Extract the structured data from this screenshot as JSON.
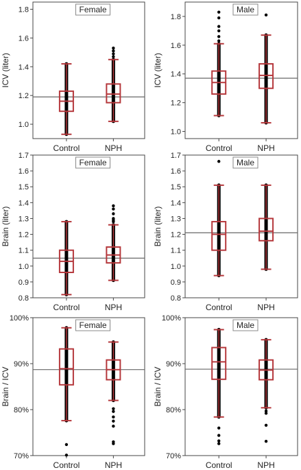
{
  "figure": {
    "panels": [
      "icv-female",
      "icv-male",
      "brain-female",
      "brain-male",
      "ratio-female",
      "ratio-male"
    ]
  },
  "chart_data": [
    {
      "id": "icv-female",
      "type": "box",
      "title": "Female",
      "ylabel": "ICV (liter)",
      "ylim": [
        0.9,
        1.85
      ],
      "yticks": [
        1.0,
        1.2,
        1.4,
        1.6,
        1.8
      ],
      "ytick_labels": [
        "1.0",
        "1.2",
        "1.4",
        "1.6",
        "1.8"
      ],
      "categories": [
        "Control",
        "NPH"
      ],
      "reference_line": 1.19,
      "boxes": [
        {
          "category": "Control",
          "whisker_low": 0.93,
          "q1": 1.09,
          "median": 1.16,
          "q3": 1.23,
          "whisker_high": 1.42,
          "outliers": []
        },
        {
          "category": "NPH",
          "whisker_low": 1.02,
          "q1": 1.15,
          "median": 1.21,
          "q3": 1.28,
          "whisker_high": 1.45,
          "outliers": [
            1.47,
            1.49,
            1.51,
            1.53
          ]
        }
      ],
      "colors": {
        "box": "#b5383c",
        "points": "#000000",
        "reference_line": "#666666"
      }
    },
    {
      "id": "icv-male",
      "type": "box",
      "title": "Male",
      "ylabel": "ICV (liter)",
      "ylim": [
        0.95,
        1.9
      ],
      "yticks": [
        1.0,
        1.2,
        1.4,
        1.6,
        1.8
      ],
      "ytick_labels": [
        "1.0",
        "1.2",
        "1.4",
        "1.6",
        "1.8"
      ],
      "categories": [
        "Control",
        "NPH"
      ],
      "reference_line": 1.37,
      "boxes": [
        {
          "category": "Control",
          "whisker_low": 1.11,
          "q1": 1.26,
          "median": 1.34,
          "q3": 1.42,
          "whisker_high": 1.61,
          "outliers": [
            1.63,
            1.66,
            1.7,
            1.73,
            1.79,
            1.83
          ]
        },
        {
          "category": "NPH",
          "whisker_low": 1.06,
          "q1": 1.3,
          "median": 1.39,
          "q3": 1.47,
          "whisker_high": 1.67,
          "outliers": [
            1.81
          ]
        }
      ],
      "colors": {
        "box": "#b5383c",
        "points": "#000000",
        "reference_line": "#666666"
      }
    },
    {
      "id": "brain-female",
      "type": "box",
      "title": "Female",
      "ylabel": "Brain (liter)",
      "ylim": [
        0.8,
        1.7
      ],
      "yticks": [
        0.8,
        0.9,
        1.0,
        1.1,
        1.2,
        1.3,
        1.4,
        1.5,
        1.6,
        1.7
      ],
      "ytick_labels": [
        "0.8",
        "0.9",
        "1.0",
        "1.1",
        "1.2",
        "1.3",
        "1.4",
        "1.5",
        "1.6",
        "1.7"
      ],
      "categories": [
        "Control",
        "NPH"
      ],
      "reference_line": 1.05,
      "boxes": [
        {
          "category": "Control",
          "whisker_low": 0.82,
          "q1": 0.96,
          "median": 1.03,
          "q3": 1.1,
          "whisker_high": 1.28,
          "outliers": []
        },
        {
          "category": "NPH",
          "whisker_low": 0.91,
          "q1": 1.02,
          "median": 1.07,
          "q3": 1.12,
          "whisker_high": 1.26,
          "outliers": [
            1.28,
            1.29,
            1.3,
            1.33,
            1.36,
            1.38
          ]
        }
      ],
      "colors": {
        "box": "#b5383c",
        "points": "#000000",
        "reference_line": "#666666"
      }
    },
    {
      "id": "brain-male",
      "type": "box",
      "title": "Male",
      "ylabel": "Brain (liter)",
      "ylim": [
        0.8,
        1.7
      ],
      "yticks": [
        0.8,
        0.9,
        1.0,
        1.1,
        1.2,
        1.3,
        1.4,
        1.5,
        1.6,
        1.7
      ],
      "ytick_labels": [
        "0.8",
        "0.9",
        "1.0",
        "1.1",
        "1.2",
        "1.3",
        "1.4",
        "1.5",
        "1.6",
        "1.7"
      ],
      "categories": [
        "Control",
        "NPH"
      ],
      "reference_line": 1.21,
      "boxes": [
        {
          "category": "Control",
          "whisker_low": 0.94,
          "q1": 1.1,
          "median": 1.2,
          "q3": 1.28,
          "whisker_high": 1.51,
          "outliers": [
            1.66
          ]
        },
        {
          "category": "NPH",
          "whisker_low": 0.98,
          "q1": 1.16,
          "median": 1.22,
          "q3": 1.3,
          "whisker_high": 1.51,
          "outliers": []
        }
      ],
      "colors": {
        "box": "#b5383c",
        "points": "#000000",
        "reference_line": "#666666"
      }
    },
    {
      "id": "ratio-female",
      "type": "box",
      "title": "Female",
      "ylabel": "Brain / ICV",
      "ylim": [
        70,
        100
      ],
      "yticks": [
        70,
        80,
        90,
        100
      ],
      "ytick_labels": [
        "70%",
        "80%",
        "90%",
        "100%"
      ],
      "categories": [
        "Control",
        "NPH"
      ],
      "reference_line": 88.7,
      "boxes": [
        {
          "category": "Control",
          "whisker_low": 77.6,
          "q1": 85.4,
          "median": 88.9,
          "q3": 93.2,
          "whisker_high": 97.8,
          "outliers": [
            72.4,
            70.1
          ]
        },
        {
          "category": "NPH",
          "whisker_low": 82.0,
          "q1": 86.5,
          "median": 88.7,
          "q3": 90.8,
          "whisker_high": 94.7,
          "outliers": [
            80.2,
            79.6,
            78.4,
            77.5,
            76.4,
            73.0,
            72.6
          ]
        }
      ],
      "colors": {
        "box": "#b5383c",
        "points": "#000000",
        "reference_line": "#666666"
      }
    },
    {
      "id": "ratio-male",
      "type": "box",
      "title": "Male",
      "ylabel": "Brain / ICV",
      "ylim": [
        70,
        100
      ],
      "yticks": [
        70,
        80,
        90,
        100
      ],
      "ytick_labels": [
        "70%",
        "80%",
        "90%",
        "100%"
      ],
      "categories": [
        "Control",
        "NPH"
      ],
      "reference_line": 88.8,
      "boxes": [
        {
          "category": "Control",
          "whisker_low": 78.4,
          "q1": 86.6,
          "median": 90.4,
          "q3": 93.5,
          "whisker_high": 97.4,
          "outliers": [
            76.0,
            74.4,
            73.2,
            72.6
          ]
        },
        {
          "category": "NPH",
          "whisker_low": 80.4,
          "q1": 86.5,
          "median": 88.6,
          "q3": 90.8,
          "whisker_high": 95.2,
          "outliers": [
            79.7,
            79.2,
            76.6,
            73.1
          ]
        }
      ],
      "colors": {
        "box": "#b5383c",
        "points": "#000000",
        "reference_line": "#666666"
      }
    }
  ]
}
